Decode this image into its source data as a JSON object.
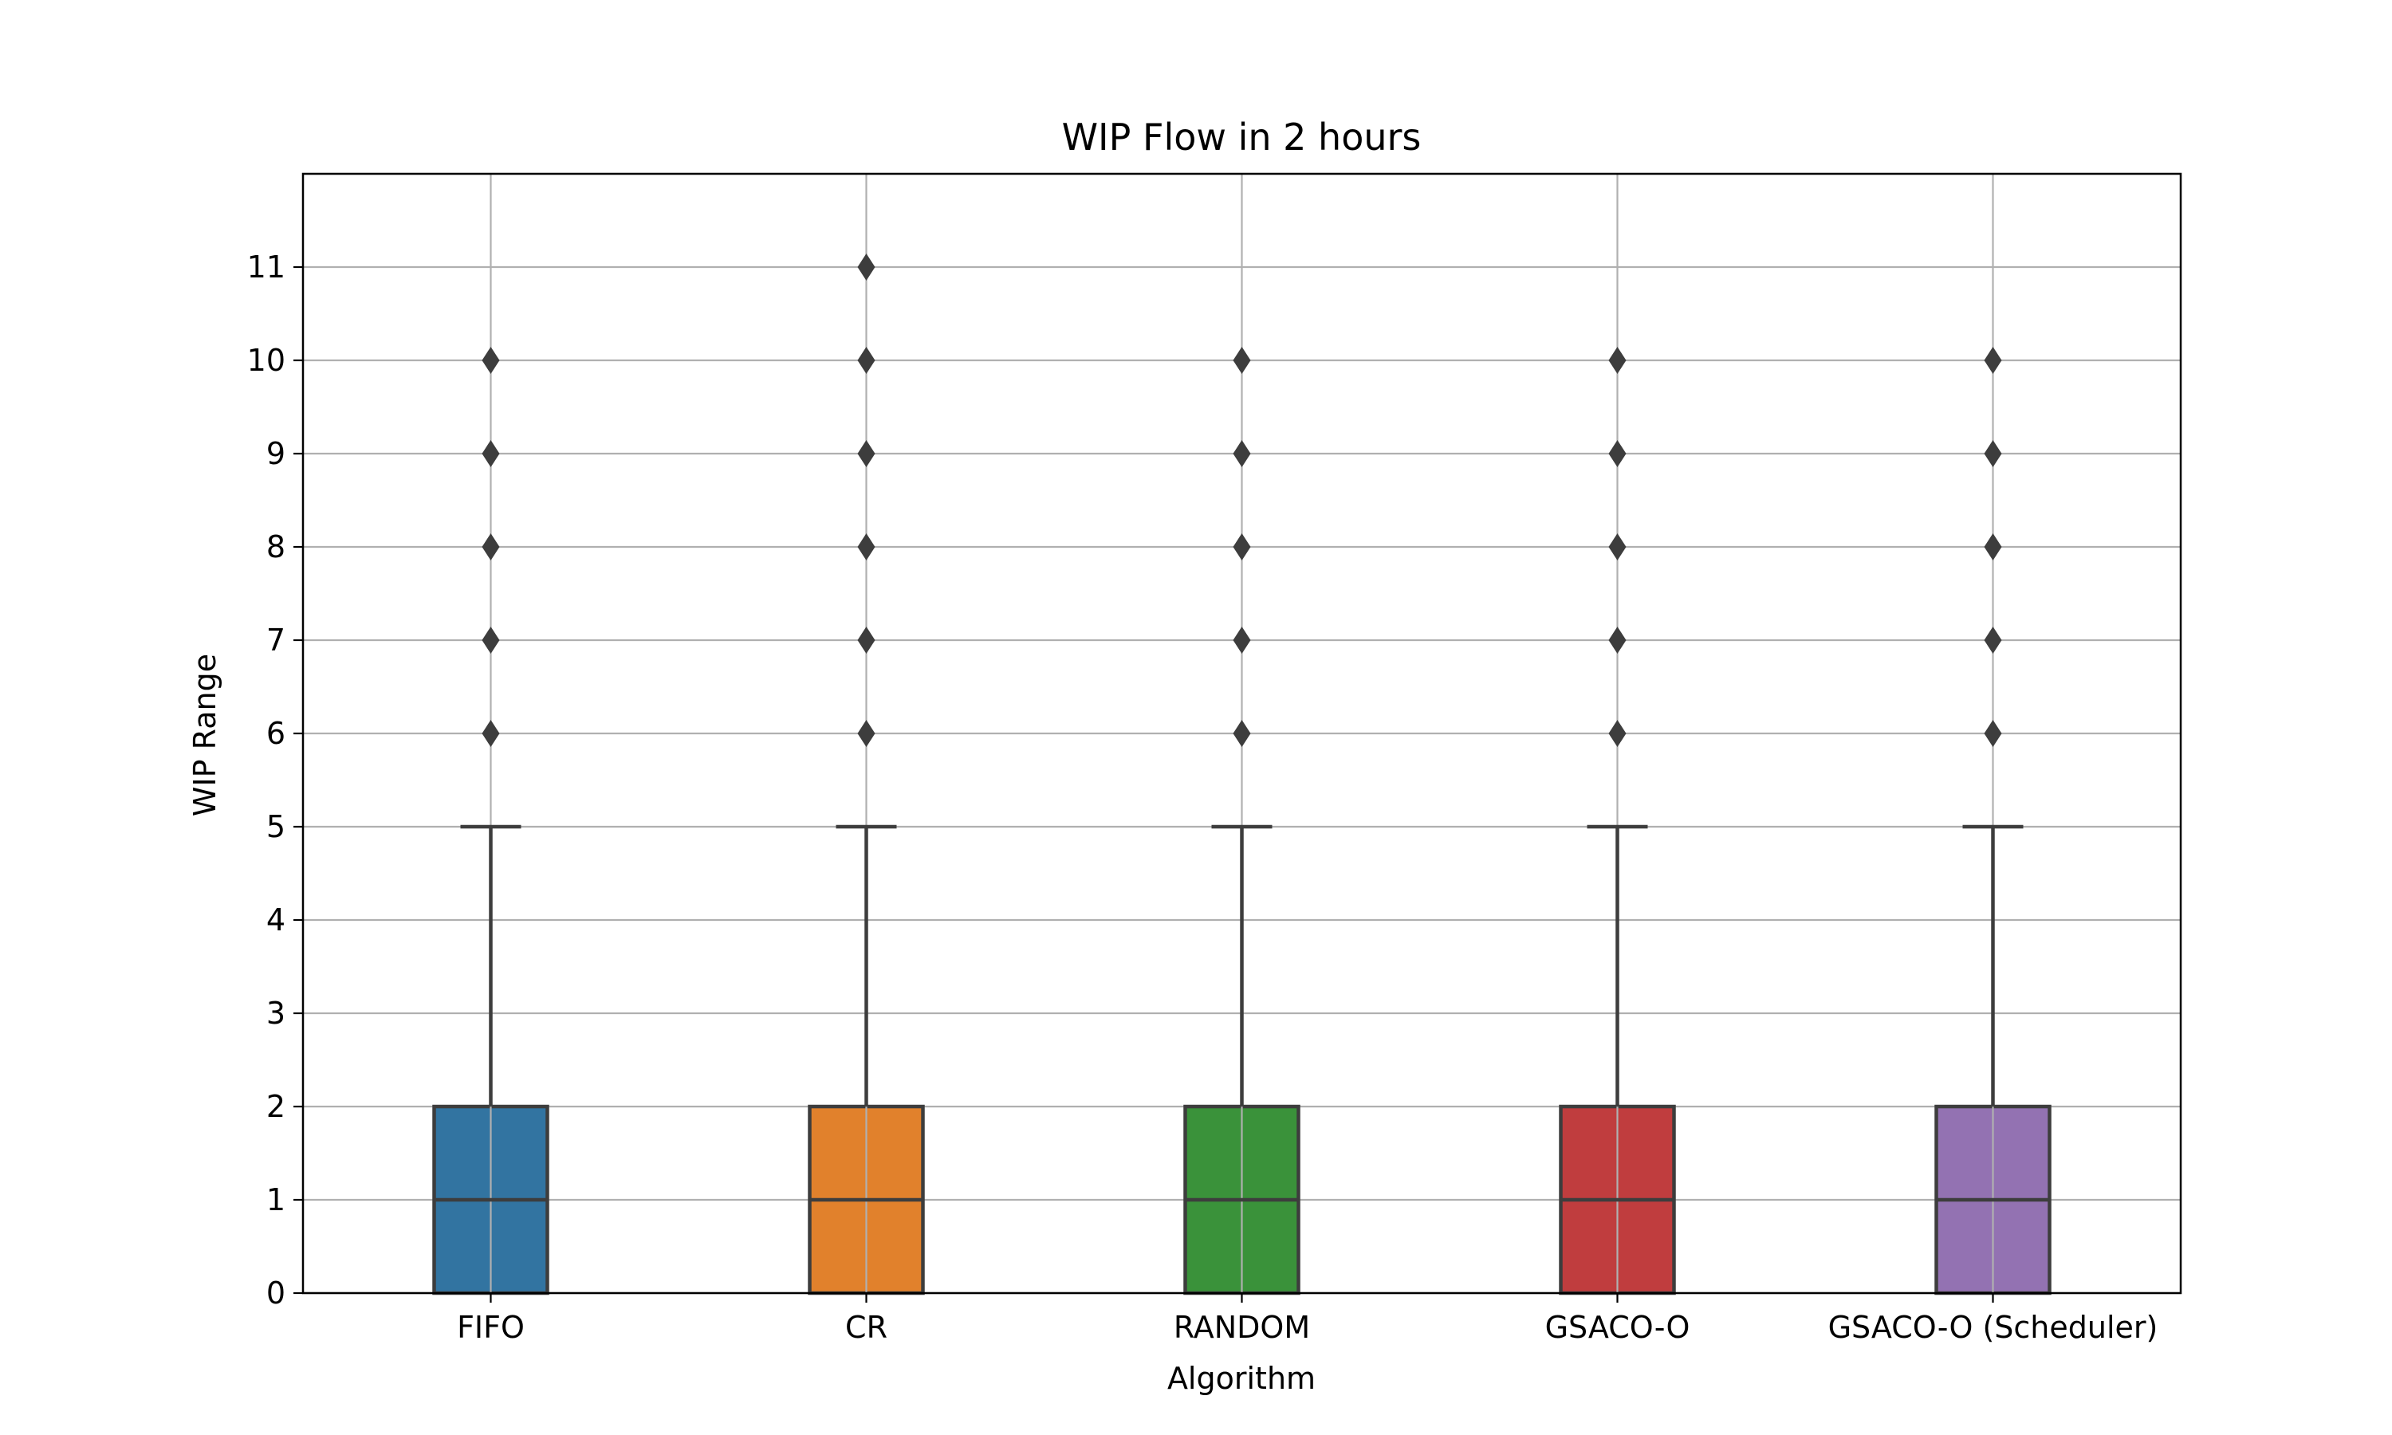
{
  "chart_data": {
    "type": "box",
    "title": "WIP Flow in 2 hours",
    "xlabel": "Algorithm",
    "ylabel": "WIP Range",
    "ylim": [
      0,
      12
    ],
    "yticks": [
      0,
      1,
      2,
      3,
      4,
      5,
      6,
      7,
      8,
      9,
      10,
      11
    ],
    "grid": true,
    "categories": [
      "FIFO",
      "CR",
      "RANDOM",
      "GSACO-O",
      "GSACO-O (Scheduler)"
    ],
    "boxes": [
      {
        "category": "FIFO",
        "whisker_low": 0,
        "q1": 0,
        "median": 1,
        "q3": 2,
        "whisker_high": 5,
        "outliers": [
          6,
          7,
          8,
          9,
          10
        ],
        "color": "#3274a1"
      },
      {
        "category": "CR",
        "whisker_low": 0,
        "q1": 0,
        "median": 1,
        "q3": 2,
        "whisker_high": 5,
        "outliers": [
          6,
          7,
          8,
          9,
          10,
          11
        ],
        "color": "#e1812c"
      },
      {
        "category": "RANDOM",
        "whisker_low": 0,
        "q1": 0,
        "median": 1,
        "q3": 2,
        "whisker_high": 5,
        "outliers": [
          6,
          7,
          8,
          9,
          10
        ],
        "color": "#3a923a"
      },
      {
        "category": "GSACO-O",
        "whisker_low": 0,
        "q1": 0,
        "median": 1,
        "q3": 2,
        "whisker_high": 5,
        "outliers": [
          6,
          7,
          8,
          9,
          10
        ],
        "color": "#c03d3e"
      },
      {
        "category": "GSACO-O (Scheduler)",
        "whisker_low": 0,
        "q1": 0,
        "median": 1,
        "q3": 2,
        "whisker_high": 5,
        "outliers": [
          6,
          7,
          8,
          9,
          10
        ],
        "color": "#9372b2"
      }
    ]
  }
}
